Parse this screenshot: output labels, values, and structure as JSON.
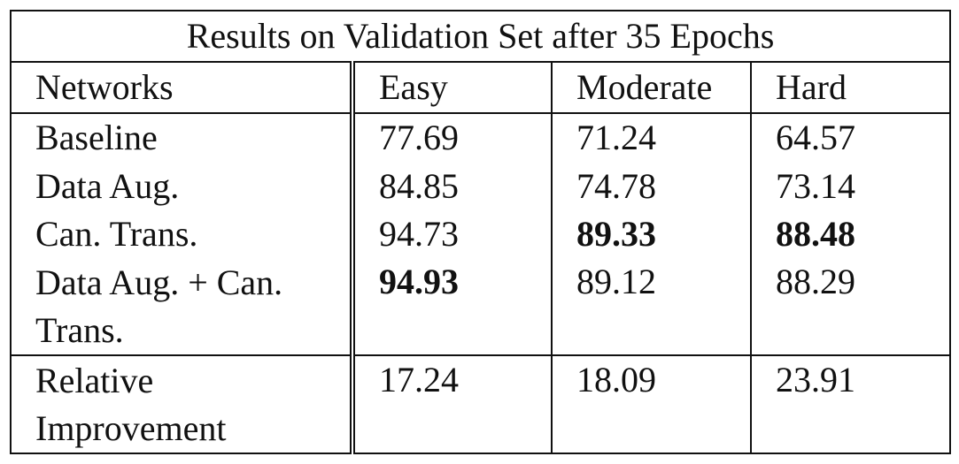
{
  "chart_data": {
    "type": "table",
    "title": "Results on Validation Set after 35 Epochs",
    "columns": [
      "Networks",
      "Easy",
      "Moderate",
      "Hard"
    ],
    "rows": [
      {
        "network": "Baseline",
        "easy": "77.69",
        "moderate": "71.24",
        "hard": "64.57"
      },
      {
        "network": "Data Aug.",
        "easy": "84.85",
        "moderate": "74.78",
        "hard": "73.14"
      },
      {
        "network": "Can. Trans.",
        "easy": "94.73",
        "moderate": "89.33",
        "hard": "88.48"
      },
      {
        "network": "Data Aug. + Can. Trans.",
        "easy": "94.93",
        "moderate": "89.12",
        "hard": "88.29"
      }
    ],
    "summary_row": {
      "network": "Relative Improvement",
      "easy": "17.24",
      "moderate": "18.09",
      "hard": "23.91"
    },
    "best_values": {
      "easy": "94.93",
      "moderate": "89.33",
      "hard": "88.48"
    }
  }
}
